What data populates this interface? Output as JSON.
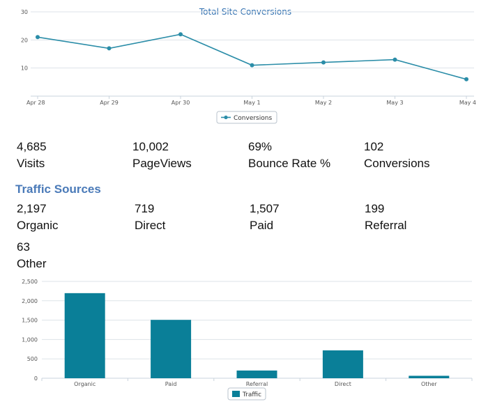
{
  "chart_data": [
    {
      "type": "line",
      "title": "Total Site Conversions",
      "x": [
        "Apr 28",
        "Apr 29",
        "Apr 30",
        "May 1",
        "May 2",
        "May 3",
        "May 4"
      ],
      "series": [
        {
          "name": "Conversions",
          "values": [
            21,
            17,
            22,
            11,
            12,
            13,
            6
          ]
        }
      ],
      "yticks": [
        10,
        20,
        30
      ],
      "ylim": [
        0,
        30
      ],
      "grid": true,
      "legend": "bottom-center",
      "colors": {
        "series": "#2b8da8",
        "grid": "#dde3e8",
        "axis": "#c9d3dc"
      }
    },
    {
      "type": "bar",
      "categories": [
        "Organic",
        "Paid",
        "Referral",
        "Direct",
        "Other"
      ],
      "series": [
        {
          "name": "Traffic",
          "values": [
            2197,
            1507,
            199,
            719,
            63
          ]
        }
      ],
      "yticks": [
        "0",
        "500",
        "1,000",
        "1,500",
        "2,000",
        "2,500"
      ],
      "ylim": [
        0,
        2500
      ],
      "grid": true,
      "legend": "bottom-center",
      "colors": {
        "series": "#0a7f98",
        "grid": "#dde3e8",
        "axis": "#c9d3dc"
      }
    }
  ],
  "summary": [
    {
      "value": "4,685",
      "label": "Visits"
    },
    {
      "value": "10,002",
      "label": "PageViews"
    },
    {
      "value": "69%",
      "label": "Bounce Rate %"
    },
    {
      "value": "102",
      "label": "Conversions"
    }
  ],
  "traffic_sources": {
    "title": "Traffic Sources",
    "items": [
      {
        "value": "2,197",
        "label": "Organic"
      },
      {
        "value": "719",
        "label": "Direct"
      },
      {
        "value": "1,507",
        "label": "Paid"
      },
      {
        "value": "199",
        "label": "Referral"
      },
      {
        "value": "63",
        "label": "Other"
      }
    ]
  }
}
